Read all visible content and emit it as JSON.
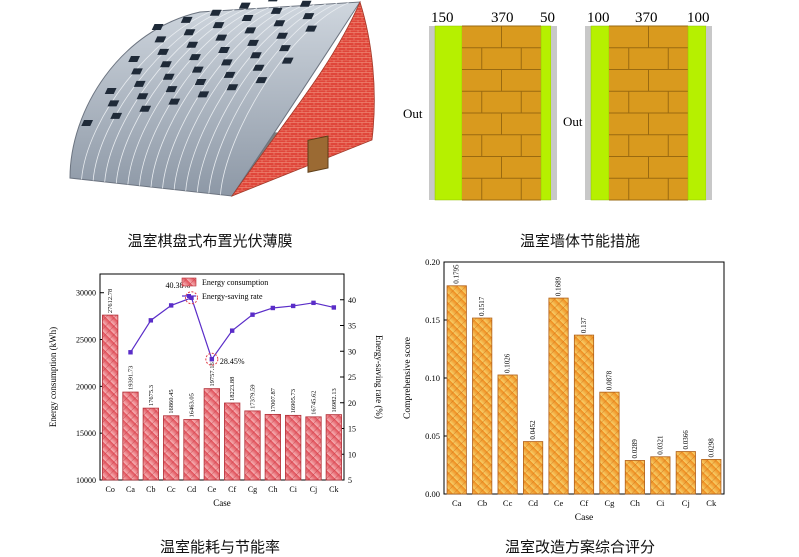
{
  "captions": {
    "greenhouse": "温室棋盘式布置光伏薄膜",
    "wall": "温室墙体节能措施",
    "energy": "温室能耗与节能率",
    "score": "温室改造方案综合评分"
  },
  "wall_diagram": {
    "left": {
      "out_label": "Out",
      "dims": [
        "150",
        "370",
        "50"
      ]
    },
    "right": {
      "out_label": "Out",
      "dims": [
        "100",
        "370",
        "100"
      ]
    },
    "colors": {
      "insulation": "#b6f000",
      "brick": "#d99a1e",
      "mortar": "#9a6a10",
      "gray": "#c8c8c8"
    }
  },
  "chart_data": [
    {
      "type": "bar",
      "categories": [
        "Co",
        "Ca",
        "Cb",
        "Cc",
        "Cd",
        "Ce",
        "Cf",
        "Cg",
        "Ch",
        "Ci",
        "Cj",
        "Ck"
      ],
      "values": [
        27612.78,
        19391.73,
        17675.3,
        16860.45,
        16463.05,
        19757.16,
        18223.88,
        17379.59,
        17007.87,
        16905.73,
        16745.62,
        16982.13
      ],
      "value_labels": [
        "27612.78",
        "19391.73",
        "17675.3",
        "16860.45",
        "16463.05",
        "19757.16",
        "18223.88",
        "17379.59",
        "17007.87",
        "16905.73",
        "16745.62",
        "16982.13"
      ],
      "series": [
        {
          "name": "Energy consumption",
          "axis": "left",
          "values": [
            27612.78,
            19391.73,
            17675.3,
            16860.45,
            16463.05,
            19757.16,
            18223.88,
            17379.59,
            17007.87,
            16905.73,
            16745.62,
            16982.13
          ],
          "color": "#e8676e"
        },
        {
          "name": "Energy-saving rate",
          "axis": "right",
          "values": [
            null,
            29.8,
            36.0,
            38.9,
            40.38,
            28.45,
            34.0,
            37.1,
            38.4,
            38.8,
            39.4,
            38.5
          ],
          "color": "#5a2dc8"
        }
      ],
      "annotations": [
        "40.38%",
        "28.45%"
      ],
      "xlabel": "Case",
      "ylabel": "Energy consumption (kWh)",
      "y2label": "Energy-saving rate (%)",
      "ylim": [
        10000,
        32000
      ],
      "yticks": [
        "10000",
        "15000",
        "20000",
        "25000",
        "30000"
      ],
      "y2lim": [
        5,
        45
      ],
      "y2ticks": [
        "5",
        "10",
        "15",
        "20",
        "25",
        "30",
        "35",
        "40"
      ],
      "legend": "top-right"
    },
    {
      "type": "bar",
      "categories": [
        "Ca",
        "Cb",
        "Cc",
        "Cd",
        "Ce",
        "Cf",
        "Cg",
        "Ch",
        "Ci",
        "Cj",
        "Ck"
      ],
      "values": [
        0.1795,
        0.1517,
        0.1026,
        0.0452,
        0.1689,
        0.137,
        0.0878,
        0.0289,
        0.0321,
        0.0366,
        0.0298
      ],
      "value_labels": [
        "0.1795",
        "0.1517",
        "0.1026",
        "0.0452",
        "0.1689",
        "0.137",
        "0.0878",
        "0.0289",
        "0.0321",
        "0.0366",
        "0.0298"
      ],
      "xlabel": "Case",
      "ylabel": "Comprehensive score",
      "ylim": [
        0,
        0.2
      ],
      "yticks": [
        "0.00",
        "0.05",
        "0.10",
        "0.15",
        "0.20"
      ],
      "color": "#f09a2a"
    }
  ]
}
